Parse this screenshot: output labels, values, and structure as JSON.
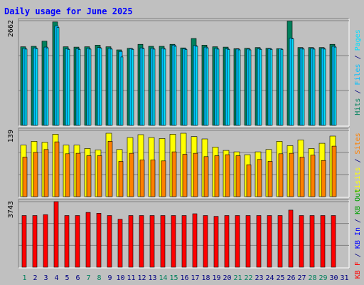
{
  "title": "Daily usage for June 2025",
  "colors": {
    "background": "#C0C0C0",
    "plot_bg": "#C0C0C0",
    "title": "#0000FF",
    "hits": "#00805C",
    "files": "#00C0FF",
    "pages": "#00E0FF",
    "visits": "#FFFF00",
    "sites": "#FF8000",
    "kbytes": "#FF0000",
    "kb_in": "#0000FF",
    "kb_out": "#00A000",
    "weekend_label": "#00805C",
    "weekday_label": "#000080"
  },
  "chart_data": [
    {
      "type": "bar",
      "title": "Daily usage for June 2025",
      "panel": "hits_files_pages",
      "ylabel_parts": [
        {
          "text": "Hits",
          "color_key": "hits"
        },
        {
          "text": " / ",
          "color_key": "weekday_label"
        },
        {
          "text": "Files",
          "color_key": "files"
        },
        {
          "text": " / ",
          "color_key": "weekday_label"
        },
        {
          "text": "Pages",
          "color_key": "pages"
        }
      ],
      "ymax": 2662,
      "ymax_label": "2662",
      "categories": [
        "1",
        "2",
        "3",
        "4",
        "5",
        "6",
        "7",
        "8",
        "9",
        "10",
        "11",
        "12",
        "13",
        "14",
        "15",
        "16",
        "17",
        "18",
        "19",
        "20",
        "21",
        "22",
        "23",
        "24",
        "25",
        "26",
        "27",
        "28",
        "29",
        "30",
        "31"
      ],
      "series": [
        {
          "name": "Hits",
          "color_key": "hits",
          "values": [
            2000,
            2010,
            2140,
            2630,
            2000,
            1990,
            2000,
            2040,
            2000,
            1920,
            1960,
            2060,
            2010,
            2010,
            2060,
            1970,
            2210,
            2040,
            2000,
            1990,
            1950,
            1960,
            1980,
            1960,
            1950,
            2650,
            1980,
            1980,
            1980,
            2060,
            0
          ]
        },
        {
          "name": "Files",
          "color_key": "files",
          "values": [
            1960,
            1970,
            1990,
            2530,
            1950,
            1950,
            1960,
            1980,
            1960,
            1880,
            1950,
            1970,
            1960,
            1960,
            2040,
            1950,
            2030,
            1990,
            1960,
            1950,
            1940,
            1940,
            1950,
            1950,
            1950,
            2220,
            1960,
            1960,
            1960,
            2010,
            0
          ]
        },
        {
          "name": "Pages",
          "color_key": "pages",
          "values": [
            1940,
            1950,
            1970,
            2490,
            1930,
            1930,
            1940,
            1960,
            1940,
            1740,
            1930,
            1950,
            1940,
            1940,
            2010,
            1930,
            2010,
            1970,
            1940,
            1930,
            1920,
            1920,
            1930,
            1930,
            1930,
            2200,
            1940,
            1940,
            1940,
            1990,
            0
          ]
        }
      ]
    },
    {
      "type": "bar",
      "panel": "visits_sites",
      "ylabel_parts": [
        {
          "text": "Visits",
          "color_key": "visits"
        },
        {
          "text": " / ",
          "color_key": "weekday_label"
        },
        {
          "text": "Sites",
          "color_key": "sites"
        }
      ],
      "ymax": 139,
      "ymax_label": "139",
      "categories": [
        "1",
        "2",
        "3",
        "4",
        "5",
        "6",
        "7",
        "8",
        "9",
        "10",
        "11",
        "12",
        "13",
        "14",
        "15",
        "16",
        "17",
        "18",
        "19",
        "20",
        "21",
        "22",
        "23",
        "24",
        "25",
        "26",
        "27",
        "28",
        "29",
        "30",
        "31"
      ],
      "series": [
        {
          "name": "Visits",
          "color_key": "visits",
          "values": [
            108,
            116,
            114,
            131,
            108,
            108,
            101,
            98,
            133,
            99,
            124,
            130,
            124,
            122,
            131,
            133,
            126,
            121,
            104,
            97,
            94,
            88,
            94,
            99,
            116,
            107,
            119,
            101,
            112,
            127,
            0
          ]
        },
        {
          "name": "Sites",
          "color_key": "sites",
          "values": [
            83,
            93,
            99,
            115,
            90,
            91,
            86,
            86,
            116,
            74,
            91,
            77,
            77,
            75,
            94,
            89,
            91,
            84,
            86,
            88,
            86,
            67,
            78,
            74,
            90,
            91,
            83,
            87,
            76,
            106,
            0
          ]
        }
      ]
    },
    {
      "type": "bar",
      "panel": "kbytes",
      "ylabel_parts": [
        {
          "text": "KB F",
          "color_key": "kbytes"
        },
        {
          "text": " / ",
          "color_key": "weekday_label"
        },
        {
          "text": "KB In",
          "color_key": "kb_in"
        },
        {
          "text": " / ",
          "color_key": "weekday_label"
        },
        {
          "text": "KB Out",
          "color_key": "kb_out"
        }
      ],
      "ymax": 3743,
      "ymax_label": "3743",
      "categories": [
        "1",
        "2",
        "3",
        "4",
        "5",
        "6",
        "7",
        "8",
        "9",
        "10",
        "11",
        "12",
        "13",
        "14",
        "15",
        "16",
        "17",
        "18",
        "19",
        "20",
        "21",
        "22",
        "23",
        "24",
        "25",
        "26",
        "27",
        "28",
        "29",
        "30",
        "31"
      ],
      "series": [
        {
          "name": "KB F",
          "color_key": "kbytes",
          "values": [
            2950,
            2950,
            3000,
            3743,
            2950,
            2950,
            3130,
            3080,
            2950,
            2740,
            2950,
            2950,
            2950,
            2950,
            2950,
            2950,
            3050,
            2950,
            2900,
            2950,
            2950,
            2950,
            2950,
            2950,
            2950,
            3260,
            2950,
            2950,
            2950,
            2950,
            0
          ]
        }
      ]
    }
  ],
  "x_axis": {
    "labels": [
      "1",
      "2",
      "3",
      "4",
      "5",
      "6",
      "7",
      "8",
      "9",
      "10",
      "11",
      "12",
      "13",
      "14",
      "15",
      "16",
      "17",
      "18",
      "19",
      "20",
      "21",
      "22",
      "23",
      "24",
      "25",
      "26",
      "27",
      "28",
      "29",
      "30",
      "31"
    ],
    "weekend_days": [
      1,
      7,
      8,
      14,
      15,
      21,
      22,
      28,
      29
    ]
  }
}
